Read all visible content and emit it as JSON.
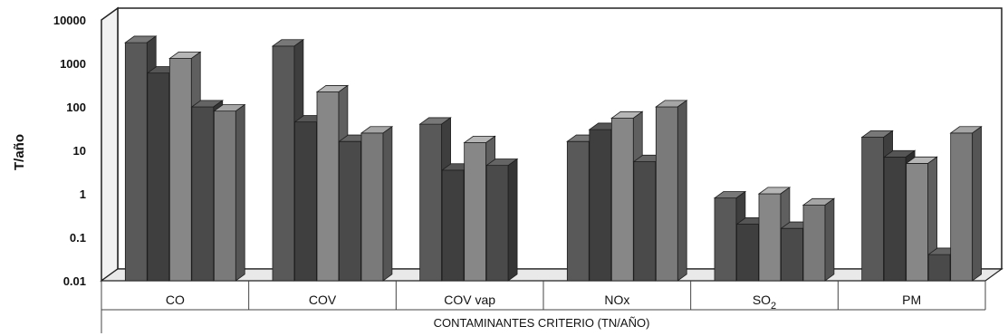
{
  "chart_data": {
    "type": "bar",
    "scale": "log",
    "ylabel": "T/año",
    "xlabel": "CONTAMINANTES CRITERIO (TN/AÑO)",
    "ylim": [
      0.01,
      10000
    ],
    "yticks": [
      "10000",
      "1000",
      "100",
      "10",
      "1",
      "0.1",
      "0.01"
    ],
    "categories": [
      "CO",
      "COV",
      "COV vap",
      "NOx",
      "SO2",
      "PM"
    ],
    "category_display": {
      "SO2": {
        "main": "SO",
        "sub": "2"
      }
    },
    "series_count": 5,
    "colors": [
      "#595959",
      "#3f3f3f",
      "#878787",
      "#4a4a4a",
      "#7a7a7a"
    ],
    "values": [
      [
        3000,
        600,
        1300,
        100,
        80
      ],
      [
        2500,
        45,
        220,
        16,
        25
      ],
      [
        40,
        3.5,
        15,
        4.5,
        null
      ],
      [
        16,
        30,
        55,
        5.5,
        100
      ],
      [
        0.8,
        0.2,
        1.0,
        0.16,
        0.55
      ],
      [
        20,
        7,
        5,
        0.04,
        25
      ]
    ],
    "grid": false,
    "legend": "none"
  }
}
